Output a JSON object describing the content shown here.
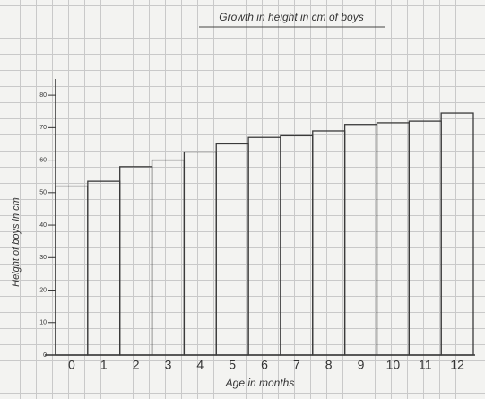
{
  "chart_data": {
    "type": "bar",
    "title": "Growth in height in cm of boys",
    "x_label": "Age in months",
    "y_label": "Height of boys in cm",
    "categories": [
      "0",
      "1",
      "2",
      "3",
      "4",
      "5",
      "6",
      "7",
      "8",
      "9",
      "10",
      "11",
      "12"
    ],
    "values": [
      52,
      53.5,
      58,
      60,
      62.5,
      65,
      67,
      67.5,
      69,
      71,
      71.5,
      72,
      74.5
    ],
    "color": "#3a3a3a",
    "ylim": [
      0,
      85
    ],
    "yticks": [
      0,
      10,
      20,
      30,
      40,
      50,
      60,
      70,
      80
    ]
  }
}
